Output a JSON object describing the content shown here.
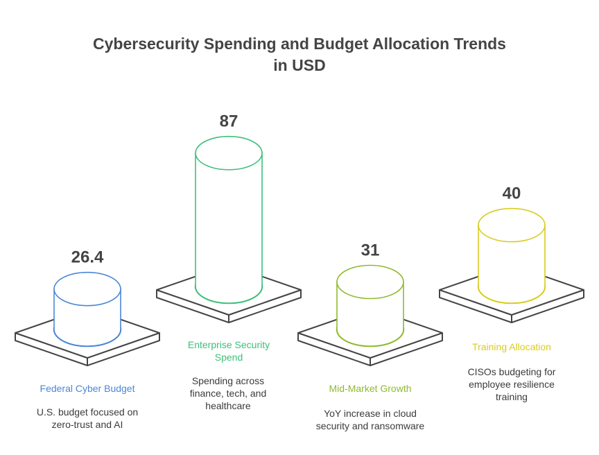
{
  "chart_data": {
    "type": "bar",
    "title": [
      "Cybersecurity Spending and Budget Allocation Trends",
      "in USD"
    ],
    "categories": [
      "Federal Cyber Budget",
      "Enterprise Security Spend",
      "Mid-Market Growth",
      "Training Allocation"
    ],
    "values": [
      26.4,
      87,
      31,
      40
    ],
    "value_labels": [
      "26.4",
      "87",
      "31",
      "40"
    ],
    "descriptions": [
      "U.S. budget focused on zero-trust and AI",
      "Spending across finance, tech, and healthcare",
      "YoY increase in cloud security and ransomware",
      "CISOs budgeting for employee resilience training"
    ],
    "colors": [
      "#4a86d8",
      "#3cbf7a",
      "#8fba2e",
      "#d9cc1e"
    ],
    "xlabel": "",
    "ylabel": "",
    "ylim": [
      0,
      87
    ]
  }
}
